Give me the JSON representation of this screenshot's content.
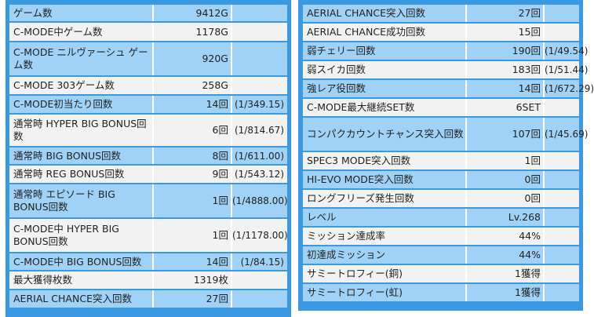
{
  "left_rows": [
    {
      "label": "ゲーム数",
      "value": "9412G",
      "ratio": "",
      "style": "blue",
      "h": 21
    },
    {
      "label": "C-MODE中ゲーム数",
      "value": "1178G",
      "ratio": "",
      "style": "gray",
      "h": 23
    },
    {
      "label": "C-MODE ニルヴァーシュ ゲーム数",
      "value": "920G",
      "ratio": "",
      "style": "blue",
      "h": 42
    },
    {
      "label": "C-MODE 303ゲーム数",
      "value": "258G",
      "ratio": "",
      "style": "gray",
      "h": 22
    },
    {
      "label": "C-MODE初当たり回数",
      "value": "14回",
      "ratio": "(1/349.15)",
      "style": "blue",
      "h": 22
    },
    {
      "label": "通常時 HYPER BIG BONUS回数",
      "value": "6回",
      "ratio": "(1/814.67)",
      "style": "gray",
      "h": 40
    },
    {
      "label": "通常時 BIG BONUS回数",
      "value": "8回",
      "ratio": "(1/611.00)",
      "style": "blue",
      "h": 21
    },
    {
      "label": "通常時 REG BONUS回数",
      "value": "9回",
      "ratio": "(1/543.12)",
      "style": "gray",
      "h": 22
    },
    {
      "label": "通常時 エピソード BIG BONUS回数",
      "value": "1回",
      "ratio": "(1/4888.00)",
      "style": "blue",
      "h": 42
    },
    {
      "label": "C-MODE中 HYPER BIG BONUS回数",
      "value": "1回",
      "ratio": "(1/1178.00)",
      "style": "gray",
      "h": 42
    },
    {
      "label": "C-MODE中 BIG BONUS回数",
      "value": "14回",
      "ratio": "(1/84.15)",
      "style": "blue",
      "h": 21
    },
    {
      "label": "最大獲得枚数",
      "value": "1319枚",
      "ratio": "",
      "style": "gray",
      "h": 22
    },
    {
      "label": "AERIAL CHANCE突入回数",
      "value": "27回",
      "ratio": "",
      "style": "blue",
      "h": 22
    }
  ],
  "right_rows": [
    {
      "label": "AERIAL CHANCE突入回数",
      "value": "27回",
      "ratio": "",
      "style": "blue",
      "h": 22
    },
    {
      "label": "AERIAL CHANCE成功回数",
      "value": "15回",
      "ratio": "",
      "style": "gray",
      "h": 22
    },
    {
      "label": "弱チェリー回数",
      "value": "190回",
      "ratio": "(1/49.54)",
      "style": "blue",
      "h": 22
    },
    {
      "label": "弱スイカ回数",
      "value": "183回",
      "ratio": "(1/51.44)",
      "style": "gray",
      "h": 22
    },
    {
      "label": "強レア役回数",
      "value": "14回",
      "ratio": "(1/672.29)",
      "style": "blue",
      "h": 22
    },
    {
      "label": "C-MODE最大継続SET数",
      "value": "6SET",
      "ratio": "",
      "style": "gray",
      "h": 22
    },
    {
      "label": "コンパクカウントチャンス突入回数",
      "value": "107回",
      "ratio": "(1/45.69)",
      "style": "blue",
      "h": 42
    },
    {
      "label": "SPEC3 MODE突入回数",
      "value": "1回",
      "ratio": "",
      "style": "gray",
      "h": 22
    },
    {
      "label": "HI-EVO MODE突入回数",
      "value": "0回",
      "ratio": "",
      "style": "blue",
      "h": 22
    },
    {
      "label": "ロングフリーズ発生回数",
      "value": "0回",
      "ratio": "",
      "style": "gray",
      "h": 22
    },
    {
      "label": "レベル",
      "value": "Lv.268",
      "ratio": "",
      "style": "blue",
      "h": 22
    },
    {
      "label": "ミッション達成率",
      "value": "44%",
      "ratio": "",
      "style": "gray",
      "h": 22
    },
    {
      "label": "初達成ミッション",
      "value": "44%",
      "ratio": "",
      "style": "blue",
      "h": 22
    },
    {
      "label": "サミートロフィー(銅)",
      "value": "1獲得",
      "ratio": "",
      "style": "gray",
      "h": 22
    },
    {
      "label": "サミートロフィー(虹)",
      "value": "1獲得",
      "ratio": "",
      "style": "blue",
      "h": 22
    }
  ]
}
